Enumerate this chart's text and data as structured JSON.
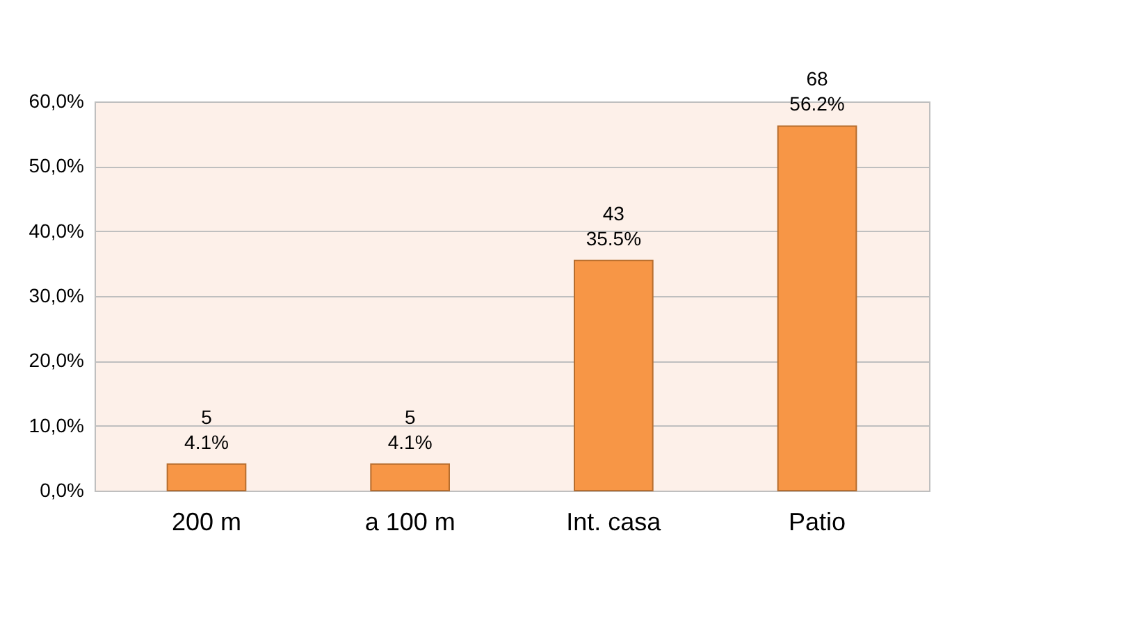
{
  "chart_data": {
    "type": "bar",
    "categories": [
      "200 m",
      "a 100 m",
      "Int. casa",
      "Patio"
    ],
    "values": [
      4.1,
      4.1,
      35.5,
      56.2
    ],
    "color": "#f79646",
    "value_labels": [
      "5\n4.1%",
      "5\n4.1%",
      "43\n35.5%",
      "68\n56.2%"
    ],
    "ylim": [
      0,
      60
    ],
    "yticks": [
      {
        "value": 0,
        "label": "0,0%"
      },
      {
        "value": 10,
        "label": "10,0%"
      },
      {
        "value": 20,
        "label": "20,0%"
      },
      {
        "value": 30,
        "label": "30,0%"
      },
      {
        "value": 40,
        "label": "40,0%"
      },
      {
        "value": 50,
        "label": "50,0%"
      },
      {
        "value": 60,
        "label": "60,0%"
      }
    ],
    "grid": "y"
  }
}
